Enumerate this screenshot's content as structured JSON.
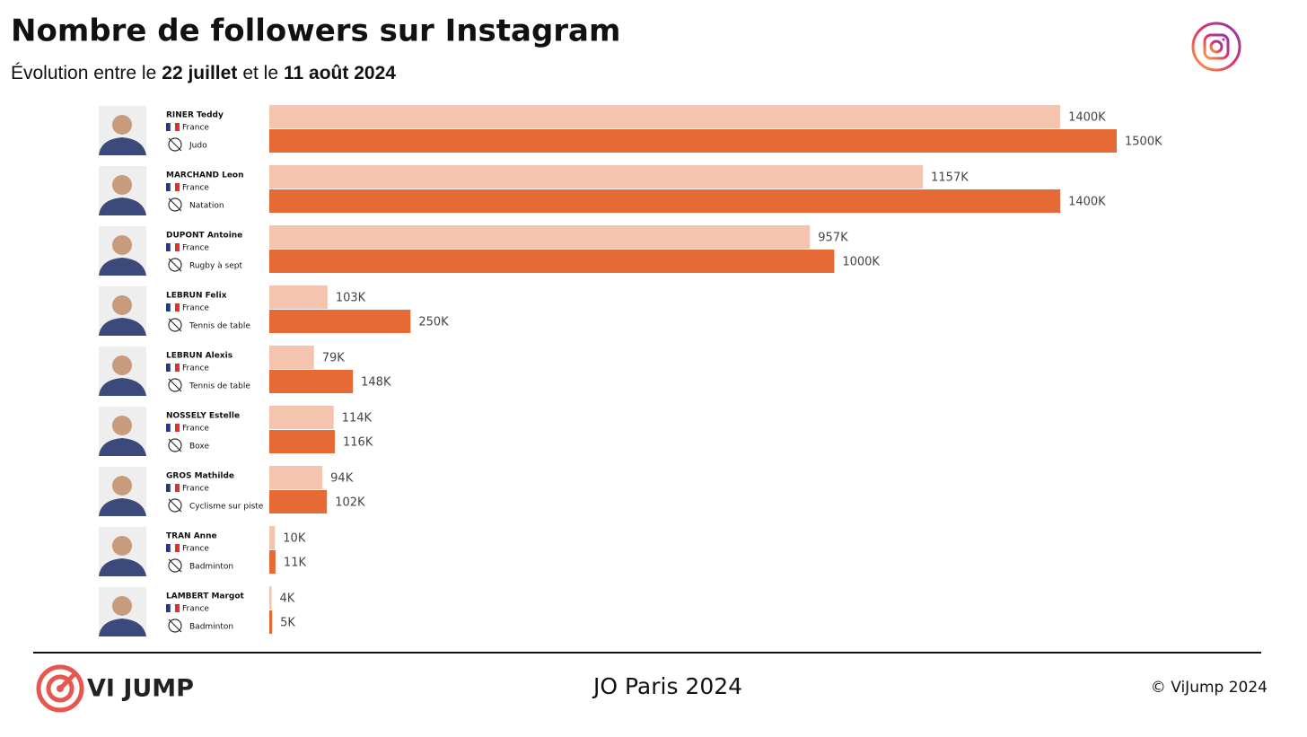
{
  "chart_data": {
    "type": "bar",
    "title": "Nombre de followers sur Instagram",
    "subtitle": [
      "Évolution entre le",
      "22 juillet",
      "et le",
      "11 août 2024"
    ],
    "categories": [
      "RINER Teddy",
      "MARCHAND Leon",
      "DUPONT Antoine",
      "LEBRUN Felix",
      "LEBRUN Alexis",
      "NOSSELY Estelle",
      "GROS Mathilde",
      "TRAN Anne",
      "LAMBERT Margot"
    ],
    "countries": [
      "France",
      "France",
      "France",
      "France",
      "France",
      "France",
      "France",
      "France",
      "France"
    ],
    "sports": [
      "Judo",
      "Natation",
      "Rugby à sept",
      "Tennis de table",
      "Tennis de table",
      "Boxe",
      "Cyclisme sur piste",
      "Badminton",
      "Badminton"
    ],
    "series": [
      {
        "color": "#f5c4ae",
        "values": [
          1400,
          1157,
          957,
          103,
          79,
          114,
          94,
          10,
          4
        ],
        "value_labels": [
          "1400K",
          "1157K",
          "957K",
          "103K",
          "79K",
          "114K",
          "94K",
          "10K",
          "4K"
        ]
      },
      {
        "color": "#e66a35",
        "values": [
          1500,
          1400,
          1000,
          250,
          148,
          116,
          102,
          11,
          5
        ],
        "value_labels": [
          "1500K",
          "1400K",
          "1000K",
          "250K",
          "148K",
          "116K",
          "102K",
          "11K",
          "5K"
        ]
      }
    ]
  },
  "footer": {
    "brand": "VI JUMP",
    "event": "JO Paris 2024",
    "copyright": "© ViJump 2024"
  }
}
